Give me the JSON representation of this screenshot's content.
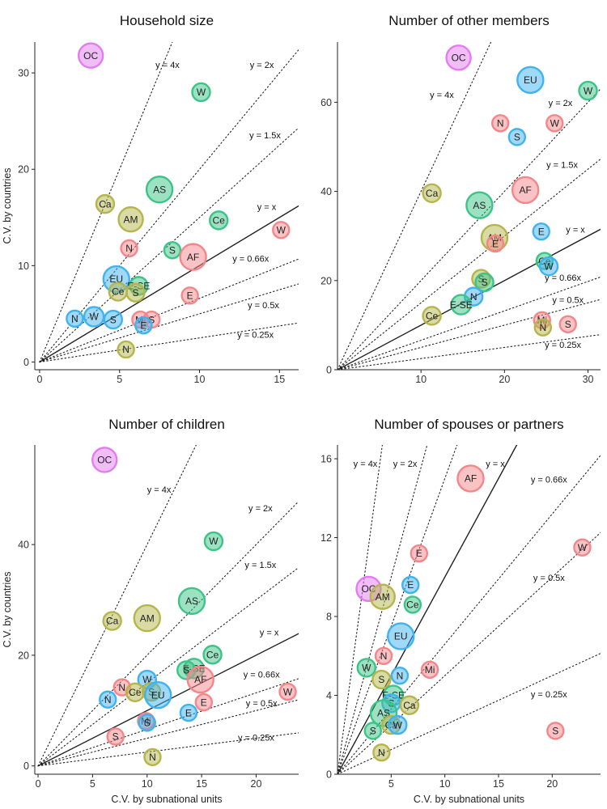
{
  "colors": {
    "AF": "#f4868a",
    "AM": "#b5b54c",
    "AS": "#3cc487",
    "Ca": "#b5b54c",
    "Ce": "#3cc487",
    "E": "#f4868a",
    "E-SE": "#3cc487",
    "EU": "#3fb3ef",
    "Mi": "#f4868a",
    "N_af": "#f4868a",
    "N_am": "#b5b54c",
    "N_eu": "#3fb3ef",
    "OC": "#e27cf0",
    "S_af": "#f4868a",
    "S_am": "#b5b54c",
    "S_as": "#3cc487",
    "S_eu": "#3fb3ef",
    "W_af": "#f4868a",
    "W_as": "#3cc487",
    "W_eu": "#3fb3ef"
  },
  "chart_data": [
    {
      "type": "scatter",
      "title": "Household size",
      "xlabel": "",
      "ylabel": "C.V. by countries",
      "xlim": [
        -0.3,
        16.2
      ],
      "ylim": [
        -0.8,
        33.2
      ],
      "xticks": [
        0,
        5,
        10,
        15
      ],
      "yticks": [
        0,
        10,
        20,
        30
      ],
      "ref_lines": [
        {
          "slope": 4,
          "label": "y = 4x",
          "lx": 8.0,
          "ly": 30.5
        },
        {
          "slope": 2,
          "label": "y = 2x",
          "lx": 13.9,
          "ly": 30.5
        },
        {
          "slope": 1.5,
          "label": "y = 1.5x",
          "lx": 14.1,
          "ly": 23.2
        },
        {
          "slope": 1,
          "label": "y = x",
          "lx": 14.2,
          "ly": 15.8
        },
        {
          "slope": 0.66,
          "label": "y = 0.66x",
          "lx": 13.2,
          "ly": 10.4
        },
        {
          "slope": 0.5,
          "label": "y = 0.5x",
          "lx": 14.0,
          "ly": 5.6
        },
        {
          "slope": 0.25,
          "label": "y = 0.25x",
          "lx": 13.5,
          "ly": 2.5
        }
      ],
      "points": [
        {
          "label": "OC",
          "x": 3.2,
          "y": 31.8,
          "size": 15,
          "color": "OC"
        },
        {
          "label": "W",
          "x": 10.1,
          "y": 28.0,
          "size": 11,
          "color": "W_as"
        },
        {
          "label": "AS",
          "x": 7.5,
          "y": 17.9,
          "size": 16,
          "color": "AS"
        },
        {
          "label": "Ca",
          "x": 4.1,
          "y": 16.4,
          "size": 11,
          "color": "Ca"
        },
        {
          "label": "AM",
          "x": 5.7,
          "y": 14.8,
          "size": 15,
          "color": "AM"
        },
        {
          "label": "Ce",
          "x": 11.2,
          "y": 14.7,
          "size": 11,
          "color": "Ce"
        },
        {
          "label": "W",
          "x": 15.1,
          "y": 13.7,
          "size": 10,
          "color": "W_af"
        },
        {
          "label": "N",
          "x": 5.6,
          "y": 11.8,
          "size": 10,
          "color": "N_af"
        },
        {
          "label": "S",
          "x": 8.3,
          "y": 11.6,
          "size": 10,
          "color": "S_as"
        },
        {
          "label": "AF",
          "x": 9.6,
          "y": 10.9,
          "size": 16,
          "color": "AF"
        },
        {
          "label": "EU",
          "x": 4.8,
          "y": 8.6,
          "size": 16,
          "color": "EU"
        },
        {
          "label": "E-SE",
          "x": 6.2,
          "y": 7.9,
          "size": 11,
          "color": "E-SE"
        },
        {
          "label": "Ce",
          "x": 4.9,
          "y": 7.3,
          "size": 11,
          "color": "AM"
        },
        {
          "label": "S",
          "x": 6.0,
          "y": 7.2,
          "size": 11,
          "color": "S_am"
        },
        {
          "label": "E",
          "x": 9.4,
          "y": 6.9,
          "size": 10,
          "color": "E"
        },
        {
          "label": "N",
          "x": 2.2,
          "y": 4.5,
          "size": 10,
          "color": "N_eu"
        },
        {
          "label": "W",
          "x": 3.4,
          "y": 4.7,
          "size": 12,
          "color": "W_eu"
        },
        {
          "label": "S",
          "x": 4.6,
          "y": 4.4,
          "size": 11,
          "color": "S_eu"
        },
        {
          "label": "Mi",
          "x": 6.3,
          "y": 4.4,
          "size": 10,
          "color": "Mi"
        },
        {
          "label": "S",
          "x": 7.0,
          "y": 4.4,
          "size": 10,
          "color": "S_af"
        },
        {
          "label": "E",
          "x": 6.5,
          "y": 3.8,
          "size": 10,
          "color": "EU"
        },
        {
          "label": "N",
          "x": 5.4,
          "y": 1.3,
          "size": 10,
          "color": "N_am"
        }
      ]
    },
    {
      "type": "scatter",
      "title": "Number of other members",
      "xlabel": "",
      "ylabel": "",
      "xlim": [
        0,
        31.5
      ],
      "ylim": [
        0,
        73.5
      ],
      "xticks": [
        10,
        20,
        30
      ],
      "yticks": [
        0,
        20,
        40,
        60
      ],
      "ref_lines": [
        {
          "slope": 4,
          "label": "y = 4x",
          "lx": 12.5,
          "ly": 61.0
        },
        {
          "slope": 2,
          "label": "y = 2x",
          "lx": 26.7,
          "ly": 59.2
        },
        {
          "slope": 1.5,
          "label": "y = 1.5x",
          "lx": 26.9,
          "ly": 45.3
        },
        {
          "slope": 1,
          "label": "y = x",
          "lx": 28.5,
          "ly": 30.8
        },
        {
          "slope": 0.66,
          "label": "y = 0.66x",
          "lx": 27.0,
          "ly": 20.0
        },
        {
          "slope": 0.5,
          "label": "y = 0.5x",
          "lx": 27.6,
          "ly": 15.0
        },
        {
          "slope": 0.25,
          "label": "y = 0.25x",
          "lx": 27.0,
          "ly": 4.9
        }
      ],
      "points": [
        {
          "label": "OC",
          "x": 14.5,
          "y": 70.0,
          "size": 15,
          "color": "OC"
        },
        {
          "label": "EU",
          "x": 23.1,
          "y": 65.0,
          "size": 16,
          "color": "EU"
        },
        {
          "label": "W",
          "x": 30.0,
          "y": 62.6,
          "size": 11,
          "color": "W_as"
        },
        {
          "label": "N",
          "x": 19.5,
          "y": 55.3,
          "size": 10,
          "color": "N_af"
        },
        {
          "label": "W",
          "x": 26.0,
          "y": 55.3,
          "size": 10,
          "color": "W_af"
        },
        {
          "label": "S",
          "x": 21.5,
          "y": 52.2,
          "size": 10,
          "color": "S_eu"
        },
        {
          "label": "AF",
          "x": 22.5,
          "y": 40.3,
          "size": 16,
          "color": "AF"
        },
        {
          "label": "Ca",
          "x": 11.3,
          "y": 39.6,
          "size": 11,
          "color": "Ca"
        },
        {
          "label": "AS",
          "x": 17.0,
          "y": 36.9,
          "size": 16,
          "color": "AS"
        },
        {
          "label": "E",
          "x": 24.4,
          "y": 31.0,
          "size": 10,
          "color": "EU"
        },
        {
          "label": "AM",
          "x": 18.8,
          "y": 29.6,
          "size": 16,
          "color": "AM"
        },
        {
          "label": "E",
          "x": 18.9,
          "y": 28.3,
          "size": 10,
          "color": "E"
        },
        {
          "label": "Ce",
          "x": 24.8,
          "y": 24.4,
          "size": 10,
          "color": "Ce"
        },
        {
          "label": "W",
          "x": 25.3,
          "y": 23.2,
          "size": 11,
          "color": "W_eu"
        },
        {
          "label": "S",
          "x": 17.2,
          "y": 20.4,
          "size": 11,
          "color": "S_am"
        },
        {
          "label": "S",
          "x": 17.6,
          "y": 19.6,
          "size": 11,
          "color": "S_as"
        },
        {
          "label": "N",
          "x": 16.3,
          "y": 16.4,
          "size": 11,
          "color": "N_eu"
        },
        {
          "label": "E-SE",
          "x": 14.8,
          "y": 14.6,
          "size": 12,
          "color": "E-SE"
        },
        {
          "label": "Ce",
          "x": 11.3,
          "y": 12.1,
          "size": 11,
          "color": "AM"
        },
        {
          "label": "Mi",
          "x": 24.5,
          "y": 11.1,
          "size": 10,
          "color": "Mi"
        },
        {
          "label": "N",
          "x": 24.6,
          "y": 9.5,
          "size": 10,
          "color": "N_am"
        },
        {
          "label": "S",
          "x": 27.6,
          "y": 10.2,
          "size": 10,
          "color": "S_af"
        }
      ]
    },
    {
      "type": "scatter",
      "title": "Number of children",
      "xlabel": "C.V. by subnational units",
      "ylabel": "C.V. by countries",
      "xlim": [
        -0.3,
        23.9
      ],
      "ylim": [
        -1.5,
        58.0
      ],
      "xticks": [
        0,
        5,
        10,
        15,
        20
      ],
      "yticks": [
        0,
        20,
        40
      ],
      "ref_lines": [
        {
          "slope": 4,
          "label": "y = 4x",
          "lx": 11.1,
          "ly": 49.4
        },
        {
          "slope": 2,
          "label": "y = 2x",
          "lx": 20.4,
          "ly": 46.0
        },
        {
          "slope": 1.5,
          "label": "y = 1.5x",
          "lx": 20.4,
          "ly": 35.8
        },
        {
          "slope": 1,
          "label": "y = x",
          "lx": 21.2,
          "ly": 23.6
        },
        {
          "slope": 0.66,
          "label": "y = 0.66x",
          "lx": 20.5,
          "ly": 16.0
        },
        {
          "slope": 0.5,
          "label": "y = 0.5x",
          "lx": 20.5,
          "ly": 10.8
        },
        {
          "slope": 0.25,
          "label": "y = 0.25x",
          "lx": 20.0,
          "ly": 4.6
        }
      ],
      "points": [
        {
          "label": "OC",
          "x": 6.1,
          "y": 55.3,
          "size": 15,
          "color": "OC"
        },
        {
          "label": "W",
          "x": 16.1,
          "y": 40.6,
          "size": 11,
          "color": "W_as"
        },
        {
          "label": "AS",
          "x": 14.1,
          "y": 29.8,
          "size": 16,
          "color": "AS"
        },
        {
          "label": "AM",
          "x": 10.0,
          "y": 26.7,
          "size": 16,
          "color": "AM"
        },
        {
          "label": "Ca",
          "x": 6.8,
          "y": 26.2,
          "size": 11,
          "color": "Ca"
        },
        {
          "label": "Ce",
          "x": 16.0,
          "y": 20.1,
          "size": 11,
          "color": "Ce"
        },
        {
          "label": "E-SE",
          "x": 14.3,
          "y": 17.6,
          "size": 12,
          "color": "E-SE"
        },
        {
          "label": "S",
          "x": 13.6,
          "y": 17.3,
          "size": 11,
          "color": "S_as"
        },
        {
          "label": "AF",
          "x": 14.9,
          "y": 15.6,
          "size": 16,
          "color": "AF"
        },
        {
          "label": "W",
          "x": 10.0,
          "y": 15.6,
          "size": 11,
          "color": "W_eu"
        },
        {
          "label": "N",
          "x": 7.7,
          "y": 14.2,
          "size": 10,
          "color": "N_af"
        },
        {
          "label": "Ce",
          "x": 8.9,
          "y": 13.3,
          "size": 11,
          "color": "AM"
        },
        {
          "label": "S",
          "x": 10.4,
          "y": 13.4,
          "size": 11,
          "color": "S_am"
        },
        {
          "label": "EU",
          "x": 11.0,
          "y": 12.8,
          "size": 16,
          "color": "EU"
        },
        {
          "label": "W",
          "x": 22.9,
          "y": 13.4,
          "size": 10,
          "color": "W_af"
        },
        {
          "label": "N",
          "x": 6.4,
          "y": 12.0,
          "size": 10,
          "color": "N_eu"
        },
        {
          "label": "E",
          "x": 15.2,
          "y": 11.5,
          "size": 10,
          "color": "E"
        },
        {
          "label": "E",
          "x": 13.8,
          "y": 9.6,
          "size": 10,
          "color": "EU"
        },
        {
          "label": "Mi",
          "x": 9.9,
          "y": 8.1,
          "size": 10,
          "color": "Mi"
        },
        {
          "label": "S",
          "x": 10.0,
          "y": 7.8,
          "size": 10,
          "color": "S_eu"
        },
        {
          "label": "S",
          "x": 7.1,
          "y": 5.3,
          "size": 10,
          "color": "S_af"
        },
        {
          "label": "N",
          "x": 10.5,
          "y": 1.6,
          "size": 10,
          "color": "N_am"
        }
      ]
    },
    {
      "type": "scatter",
      "title": "Number of spouses or partners",
      "xlabel": "C.V. by subnational units",
      "ylabel": "",
      "xlim": [
        0,
        24.5
      ],
      "ylim": [
        0,
        16.7
      ],
      "xticks": [
        5,
        10,
        15,
        20
      ],
      "yticks": [
        0,
        4,
        8,
        12,
        16
      ],
      "ref_lines": [
        {
          "slope": 4,
          "label": "y = 4x",
          "lx": 2.6,
          "ly": 15.6
        },
        {
          "slope": 2,
          "label": "y = 2x",
          "lx": 6.3,
          "ly": 15.6
        },
        {
          "slope": 1.5,
          "label": "",
          "lx": 0,
          "ly": 0
        },
        {
          "slope": 1,
          "label": "y = x",
          "lx": 14.7,
          "ly": 15.6
        },
        {
          "slope": 0.66,
          "label": "y = 0.66x",
          "lx": 19.7,
          "ly": 14.8
        },
        {
          "slope": 0.5,
          "label": "y = 0.5x",
          "lx": 19.7,
          "ly": 9.8
        },
        {
          "slope": 0.25,
          "label": "y = 0.25x",
          "lx": 19.7,
          "ly": 3.9
        }
      ],
      "points": [
        {
          "label": "AF",
          "x": 12.4,
          "y": 15.0,
          "size": 16,
          "color": "AF"
        },
        {
          "label": "E",
          "x": 7.6,
          "y": 11.2,
          "size": 10,
          "color": "E"
        },
        {
          "label": "W",
          "x": 22.8,
          "y": 11.5,
          "size": 10,
          "color": "W_af"
        },
        {
          "label": "E",
          "x": 6.8,
          "y": 9.6,
          "size": 10,
          "color": "EU"
        },
        {
          "label": "OC",
          "x": 2.9,
          "y": 9.4,
          "size": 15,
          "color": "OC"
        },
        {
          "label": "AM",
          "x": 4.2,
          "y": 9.0,
          "size": 15,
          "color": "AM"
        },
        {
          "label": "Ce",
          "x": 7.0,
          "y": 8.6,
          "size": 10,
          "color": "Ce"
        },
        {
          "label": "EU",
          "x": 5.9,
          "y": 7.0,
          "size": 16,
          "color": "EU"
        },
        {
          "label": "N",
          "x": 4.3,
          "y": 6.0,
          "size": 10,
          "color": "N_af"
        },
        {
          "label": "W",
          "x": 2.7,
          "y": 5.4,
          "size": 11,
          "color": "W_as"
        },
        {
          "label": "Mi",
          "x": 8.6,
          "y": 5.3,
          "size": 10,
          "color": "Mi"
        },
        {
          "label": "S",
          "x": 4.1,
          "y": 4.8,
          "size": 11,
          "color": "S_am"
        },
        {
          "label": "N",
          "x": 5.8,
          "y": 5.0,
          "size": 10,
          "color": "N_eu"
        },
        {
          "label": "E-SE",
          "x": 5.2,
          "y": 4.0,
          "size": 12,
          "color": "E-SE"
        },
        {
          "label": "S",
          "x": 5.0,
          "y": 3.6,
          "size": 11,
          "color": "S_eu"
        },
        {
          "label": "Ca",
          "x": 6.7,
          "y": 3.5,
          "size": 11,
          "color": "Ca"
        },
        {
          "label": "AS",
          "x": 4.3,
          "y": 3.1,
          "size": 16,
          "color": "AS"
        },
        {
          "label": "Ca",
          "x": 5.0,
          "y": 2.5,
          "size": 11,
          "color": "AM"
        },
        {
          "label": "W",
          "x": 5.6,
          "y": 2.5,
          "size": 11,
          "color": "W_eu"
        },
        {
          "label": "S",
          "x": 3.3,
          "y": 2.2,
          "size": 10,
          "color": "S_as"
        },
        {
          "label": "S",
          "x": 20.3,
          "y": 2.2,
          "size": 10,
          "color": "S_af"
        },
        {
          "label": "N",
          "x": 4.1,
          "y": 1.1,
          "size": 10,
          "color": "N_am"
        }
      ]
    }
  ]
}
